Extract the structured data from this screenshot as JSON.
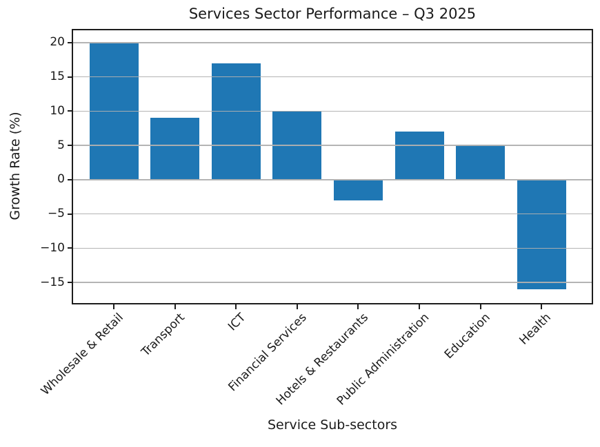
{
  "chart_data": {
    "type": "bar",
    "title": "Services Sector Performance – Q3 2025",
    "xlabel": "Service Sub-sectors",
    "ylabel": "Growth Rate (%)",
    "categories": [
      "Wholesale & Retail",
      "Transport",
      "ICT",
      "Financial Services",
      "Hotels & Restaurants",
      "Public Administration",
      "Education",
      "Health"
    ],
    "values": [
      20,
      9,
      17,
      10,
      -3,
      7,
      5,
      -16
    ],
    "yticks": [
      20,
      15,
      10,
      5,
      0,
      -5,
      -10,
      -15
    ],
    "ylim": [
      -18,
      21.8
    ],
    "bar_color": "#1f77b4",
    "grid": "horizontal",
    "grid_color": "#b0b0b0",
    "grid_above_bars": true,
    "legend": "none",
    "tick_label_rotation": 45
  }
}
